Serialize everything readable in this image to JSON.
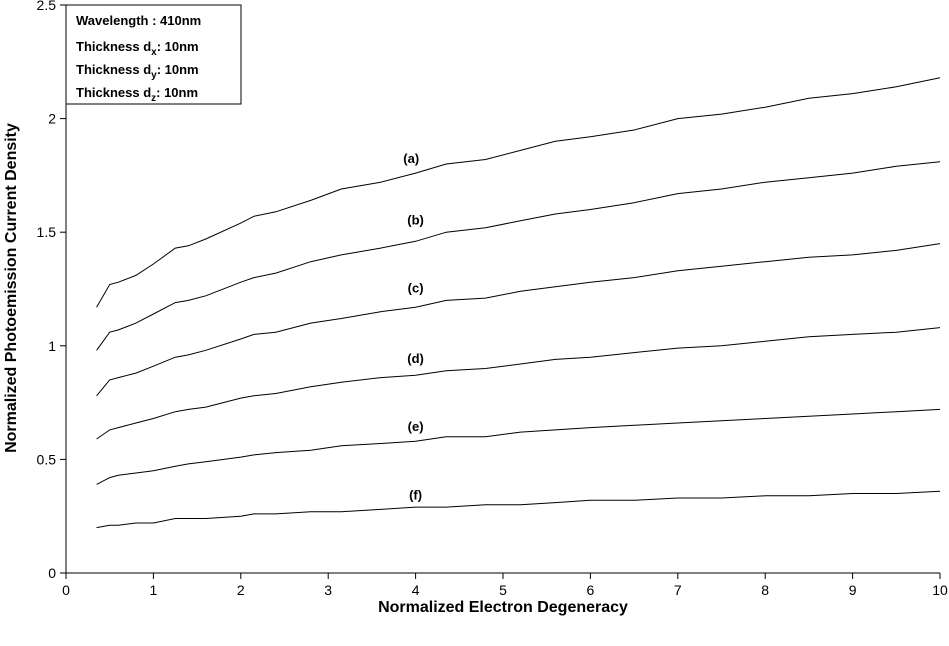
{
  "chart_data": {
    "type": "line",
    "title": "",
    "xlabel": "Normalized Electron Degeneracy",
    "ylabel": "Normalized Photoemission Current Density",
    "xlim": [
      0,
      10
    ],
    "ylim": [
      0,
      2.5
    ],
    "xticks": [
      0,
      1,
      2,
      3,
      4,
      5,
      6,
      7,
      8,
      9,
      10
    ],
    "yticks": [
      0,
      0.5,
      1,
      1.5,
      2,
      2.5
    ],
    "ytick_labels": [
      "0",
      "0.5",
      "1",
      "1.5",
      "2",
      "2.5"
    ],
    "grid": false,
    "legend_box": {
      "position": "top-left",
      "lines": [
        {
          "text": "Wavelength : 410nm"
        },
        {
          "pre": "Thickness d",
          "sub": "x",
          "post": ": 10nm"
        },
        {
          "pre": "Thickness d",
          "sub": "y",
          "post": ": 10nm"
        },
        {
          "pre": "Thickness d",
          "sub": "z",
          "post": ": 10nm"
        }
      ]
    },
    "x": [
      0.35,
      0.5,
      0.6,
      0.8,
      1.0,
      1.25,
      1.4,
      1.6,
      2.0,
      2.15,
      2.4,
      2.8,
      3.15,
      3.6,
      4.0,
      4.35,
      4.8,
      5.2,
      5.6,
      6.0,
      6.5,
      7.0,
      7.5,
      8.0,
      8.5,
      9.0,
      9.5,
      10.0
    ],
    "series": [
      {
        "name": "(a)",
        "label_at": [
          3.95,
          1.76
        ],
        "values": [
          1.17,
          1.27,
          1.28,
          1.31,
          1.36,
          1.43,
          1.44,
          1.47,
          1.54,
          1.57,
          1.59,
          1.64,
          1.69,
          1.72,
          1.76,
          1.8,
          1.82,
          1.86,
          1.9,
          1.92,
          1.95,
          2.0,
          2.02,
          2.05,
          2.09,
          2.11,
          2.14,
          2.18
        ]
      },
      {
        "name": "(b)",
        "label_at": [
          4.0,
          1.49
        ],
        "values": [
          0.98,
          1.06,
          1.07,
          1.1,
          1.14,
          1.19,
          1.2,
          1.22,
          1.28,
          1.3,
          1.32,
          1.37,
          1.4,
          1.43,
          1.46,
          1.5,
          1.52,
          1.55,
          1.58,
          1.6,
          1.63,
          1.67,
          1.69,
          1.72,
          1.74,
          1.76,
          1.79,
          1.81
        ]
      },
      {
        "name": "(c)",
        "label_at": [
          4.0,
          1.19
        ],
        "values": [
          0.78,
          0.85,
          0.86,
          0.88,
          0.91,
          0.95,
          0.96,
          0.98,
          1.03,
          1.05,
          1.06,
          1.1,
          1.12,
          1.15,
          1.17,
          1.2,
          1.21,
          1.24,
          1.26,
          1.28,
          1.3,
          1.33,
          1.35,
          1.37,
          1.39,
          1.4,
          1.42,
          1.45
        ]
      },
      {
        "name": "(d)",
        "label_at": [
          4.0,
          0.88
        ],
        "values": [
          0.59,
          0.63,
          0.64,
          0.66,
          0.68,
          0.71,
          0.72,
          0.73,
          0.77,
          0.78,
          0.79,
          0.82,
          0.84,
          0.86,
          0.87,
          0.89,
          0.9,
          0.92,
          0.94,
          0.95,
          0.97,
          0.99,
          1.0,
          1.02,
          1.04,
          1.05,
          1.06,
          1.08
        ]
      },
      {
        "name": "(e)",
        "label_at": [
          4.0,
          0.58
        ],
        "values": [
          0.39,
          0.42,
          0.43,
          0.44,
          0.45,
          0.47,
          0.48,
          0.49,
          0.51,
          0.52,
          0.53,
          0.54,
          0.56,
          0.57,
          0.58,
          0.6,
          0.6,
          0.62,
          0.63,
          0.64,
          0.65,
          0.66,
          0.67,
          0.68,
          0.69,
          0.7,
          0.71,
          0.72
        ]
      },
      {
        "name": "(f)",
        "label_at": [
          4.0,
          0.28
        ],
        "values": [
          0.2,
          0.21,
          0.21,
          0.22,
          0.22,
          0.24,
          0.24,
          0.24,
          0.25,
          0.26,
          0.26,
          0.27,
          0.27,
          0.28,
          0.29,
          0.29,
          0.3,
          0.3,
          0.31,
          0.32,
          0.32,
          0.33,
          0.33,
          0.34,
          0.34,
          0.35,
          0.35,
          0.36
        ]
      }
    ]
  }
}
